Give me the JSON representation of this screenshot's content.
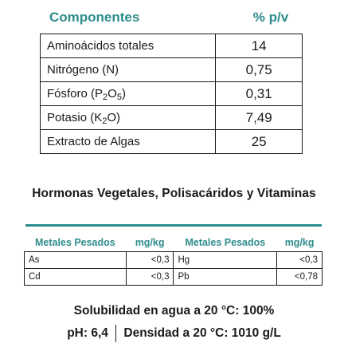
{
  "composition": {
    "header": {
      "component": "Componentes",
      "unit": "% p/v"
    },
    "rows": [
      {
        "name": "Aminoácidos totales",
        "value": "14"
      },
      {
        "name": "Nitrógeno (N)",
        "value": "0,75"
      },
      {
        "name_pre": "Fósforo (P",
        "sub1": "2",
        "name_mid": "O",
        "sub2": "5",
        "name_post": ")",
        "value": "0,31"
      },
      {
        "name_pre": "Potasio (K",
        "sub1": "2",
        "name_mid": "O)",
        "value": "7,49"
      },
      {
        "name": "Extracto de Algas",
        "value": "25"
      }
    ]
  },
  "hormones_title": "Hormonas Vegetales, Polisacáridos y Vitaminas",
  "metals": {
    "headers": [
      "Metales Pesados",
      "mg/kg",
      "Metales Pesados",
      "mg/kg"
    ],
    "rows": [
      [
        "As",
        "<0,3",
        "Hg",
        "<0,3"
      ],
      [
        "Cd",
        "<0,3",
        "Pb",
        "<0,78"
      ]
    ]
  },
  "footer": {
    "solubility": "Solubilidad en agua a 20 °C: 100%",
    "ph": "pH: 6,4",
    "density": "Densidad a 20 °C: 1010 g/L"
  },
  "colors": {
    "accent": "#2f8c8c",
    "text": "#1a1a1a"
  }
}
